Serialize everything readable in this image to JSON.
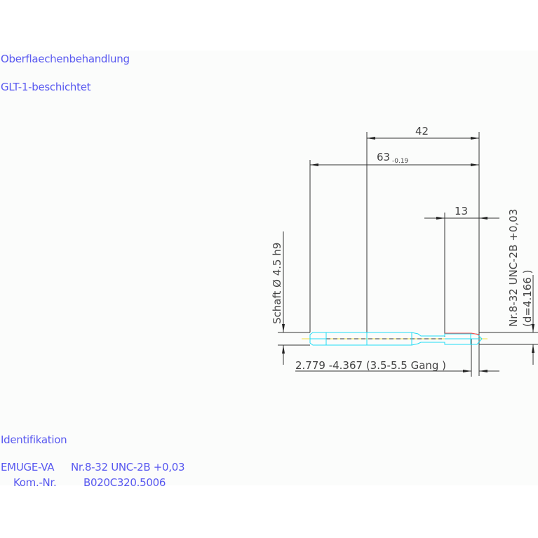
{
  "notes": {
    "surface_label": "Oberflaechenbehandlung",
    "surface_value": "GLT-1-beschichtet",
    "ident_label": "Identifikation",
    "ident_line1_brand": "EMUGE-VA",
    "ident_line1_spec": "Nr.8-32 UNC-2B +0,03",
    "ident_line2_label": "Kom.-Nr.",
    "ident_line2_value": "B020C320.5006"
  },
  "dimensions": {
    "thread_length": "42",
    "total_length": "63",
    "total_length_tol": "-0.19",
    "chamfer_length": "13",
    "shank": "Schaft  Ø  4.5  h9",
    "thread_spec": "Nr.8-32  UNC-2B  +0,03",
    "thread_diameter": "(d=4.166 )",
    "chamfer_note": "2.779  -4.367 (3.5-5.5  Gang  )"
  },
  "colors": {
    "text": "#5858f0",
    "tool_outline": "#22dcf4",
    "thread_mark": "#ff4040",
    "centerline": "#f0e040"
  }
}
